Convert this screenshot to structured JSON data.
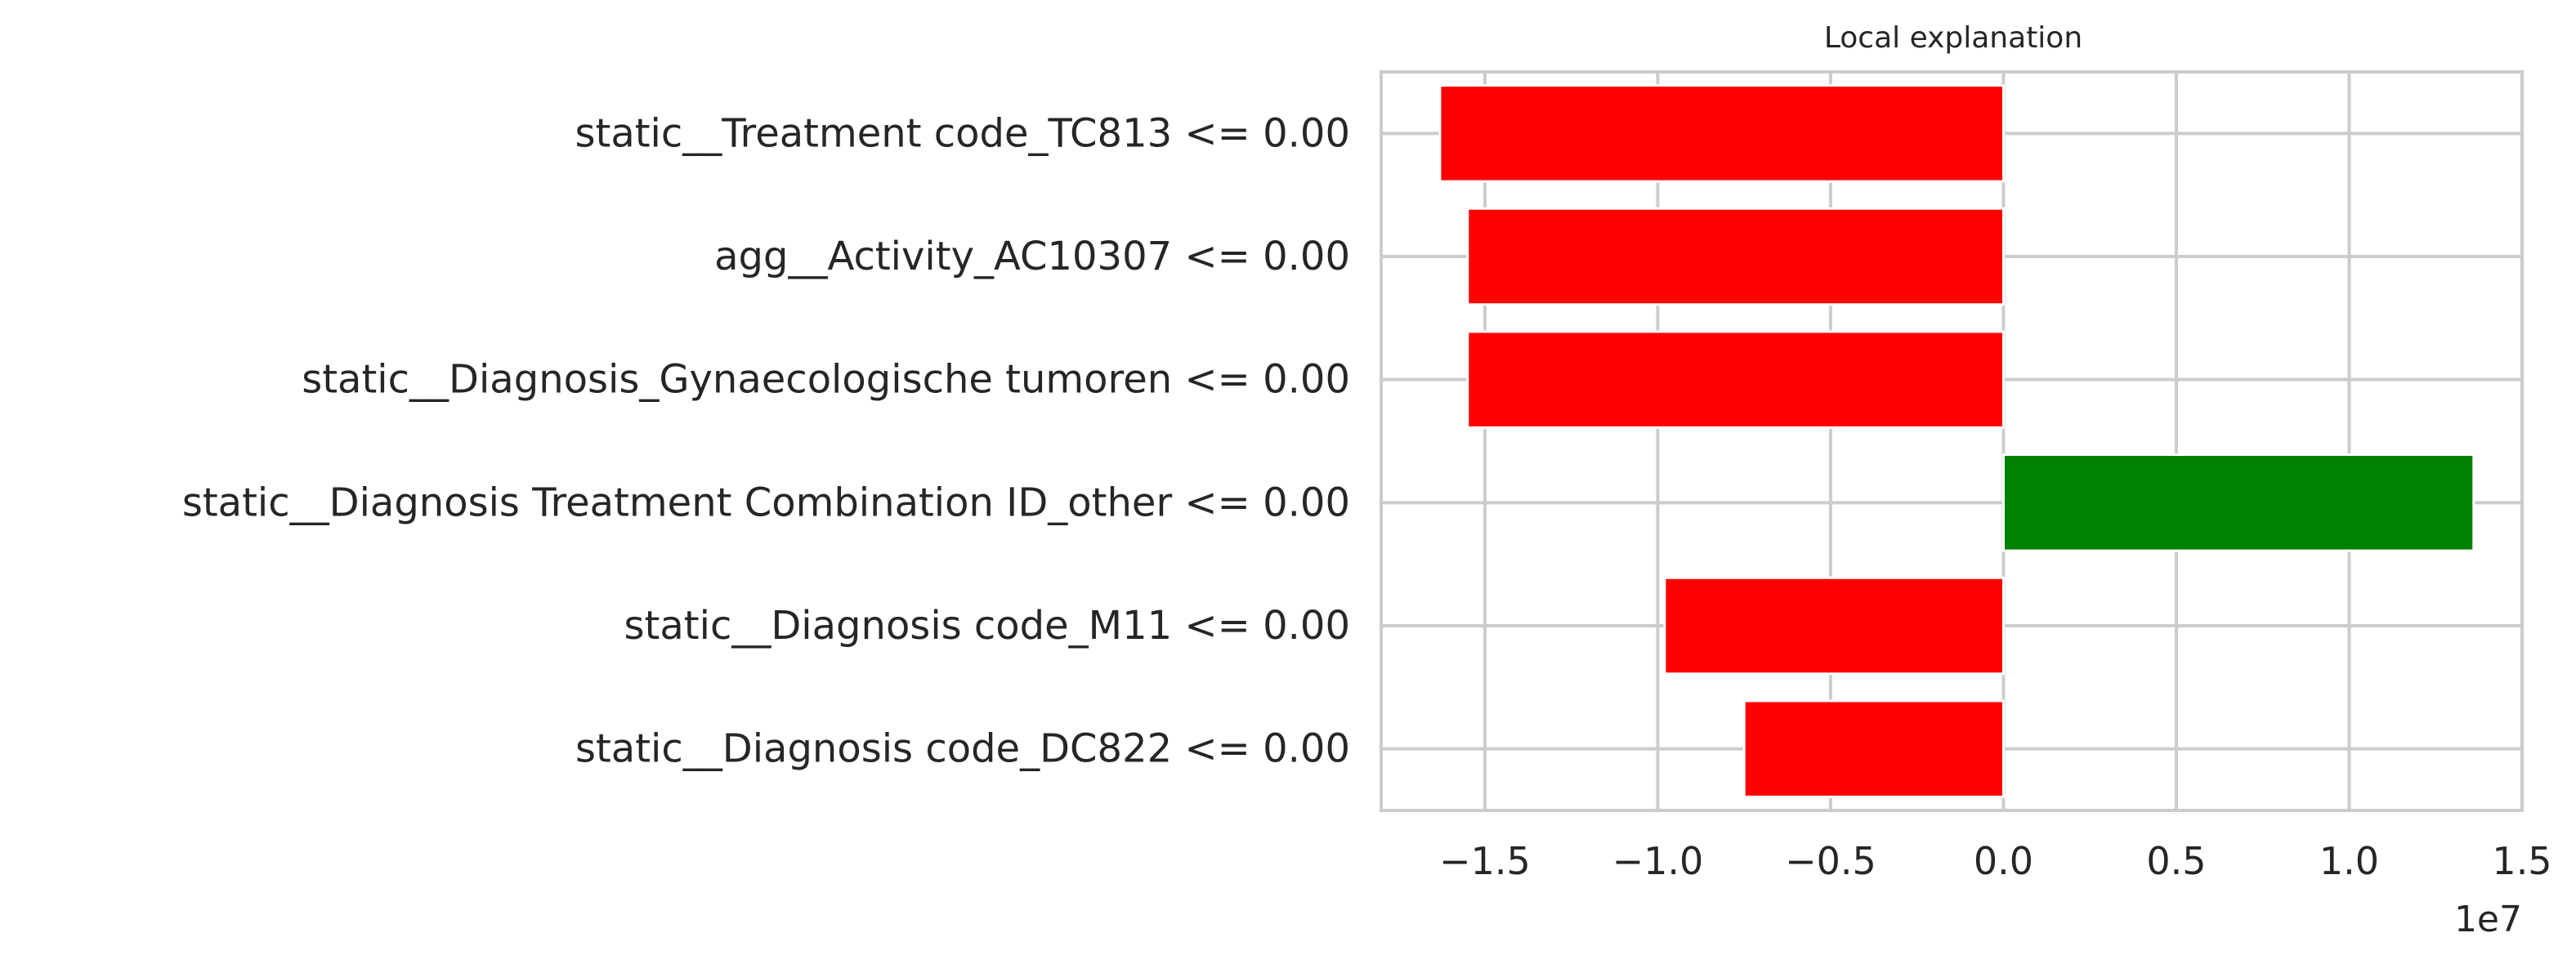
{
  "chart_data": {
    "type": "bar",
    "orientation": "horizontal",
    "title": "Local explanation",
    "xlabel": "",
    "ylabel": "",
    "x_scale_label": "1e7",
    "xlim": [
      -1.8,
      1.5
    ],
    "grid": true,
    "categories": [
      "static__Treatment code_TC813 <= 0.00",
      "agg__Activity_AC10307 <= 0.00",
      "static__Diagnosis_Gynaecologische tumoren <= 0.00",
      "static__Diagnosis Treatment Combination ID_other <= 0.00",
      "static__Diagnosis code_M11 <= 0.00",
      "static__Diagnosis code_DC822 <= 0.00"
    ],
    "values": [
      -1.63,
      -1.55,
      -1.55,
      1.36,
      -0.98,
      -0.75
    ],
    "colors": [
      "#ff0000",
      "#ff0000",
      "#ff0000",
      "#008000",
      "#ff0000",
      "#ff0000"
    ],
    "x_ticks": [
      -1.5,
      -1.0,
      -0.5,
      0.0,
      0.5,
      1.0,
      1.5
    ],
    "x_tick_labels": [
      "−1.5",
      "−1.0",
      "−0.5",
      "0.0",
      "0.5",
      "1.0",
      "1.5"
    ]
  }
}
